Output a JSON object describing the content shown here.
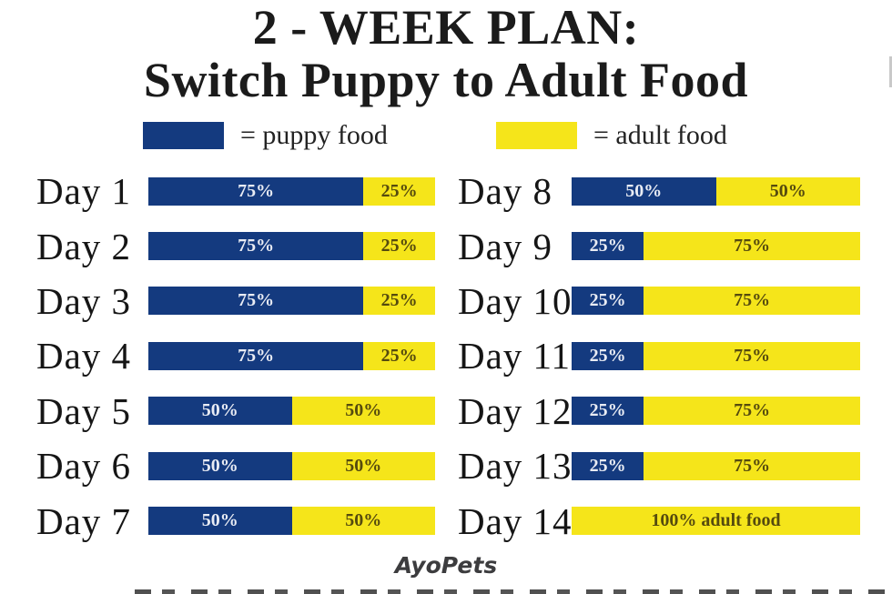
{
  "title": {
    "line1": "2 - WEEK PLAN:",
    "line2": "Switch Puppy to Adult Food"
  },
  "legend": {
    "puppy_label": "= puppy food",
    "adult_label": "= adult food"
  },
  "colors": {
    "puppy_blue": "#143a7f",
    "adult_yellow": "#f5e51a"
  },
  "footer": {
    "brand": "AyoPets"
  },
  "chart_data": {
    "type": "bar",
    "subtype": "horizontal_stacked_percent",
    "title": "2 - WEEK PLAN: Switch Puppy to Adult Food",
    "legend_entries": [
      "= puppy food",
      "= adult food"
    ],
    "series": [
      {
        "name": "puppy food",
        "color": "#143a7f"
      },
      {
        "name": "adult food",
        "color": "#f5e51a"
      }
    ],
    "layout": {
      "columns": 2,
      "left_column": [
        "Day 1",
        "Day 2",
        "Day 3",
        "Day 4",
        "Day 5",
        "Day 6",
        "Day 7"
      ],
      "right_column": [
        "Day 8",
        "Day 9",
        "Day 10",
        "Day 11",
        "Day 12",
        "Day 13",
        "Day 14"
      ],
      "value_labels": "inside"
    },
    "rows": [
      {
        "day": "Day 1",
        "puppy_pct": 75,
        "adult_pct": 25,
        "puppy_label": "75%",
        "adult_label": "25%"
      },
      {
        "day": "Day 2",
        "puppy_pct": 75,
        "adult_pct": 25,
        "puppy_label": "75%",
        "adult_label": "25%"
      },
      {
        "day": "Day 3",
        "puppy_pct": 75,
        "adult_pct": 25,
        "puppy_label": "75%",
        "adult_label": "25%"
      },
      {
        "day": "Day 4",
        "puppy_pct": 75,
        "adult_pct": 25,
        "puppy_label": "75%",
        "adult_label": "25%"
      },
      {
        "day": "Day 5",
        "puppy_pct": 50,
        "adult_pct": 50,
        "puppy_label": "50%",
        "adult_label": "50%"
      },
      {
        "day": "Day 6",
        "puppy_pct": 50,
        "adult_pct": 50,
        "puppy_label": "50%",
        "adult_label": "50%"
      },
      {
        "day": "Day 7",
        "puppy_pct": 50,
        "adult_pct": 50,
        "puppy_label": "50%",
        "adult_label": "50%"
      },
      {
        "day": "Day 8",
        "puppy_pct": 50,
        "adult_pct": 50,
        "puppy_label": "50%",
        "adult_label": "50%"
      },
      {
        "day": "Day 9",
        "puppy_pct": 25,
        "adult_pct": 75,
        "puppy_label": "25%",
        "adult_label": "75%"
      },
      {
        "day": "Day 10",
        "puppy_pct": 25,
        "adult_pct": 75,
        "puppy_label": "25%",
        "adult_label": "75%"
      },
      {
        "day": "Day 11",
        "puppy_pct": 25,
        "adult_pct": 75,
        "puppy_label": "25%",
        "adult_label": "75%"
      },
      {
        "day": "Day 12",
        "puppy_pct": 25,
        "adult_pct": 75,
        "puppy_label": "25%",
        "adult_label": "75%"
      },
      {
        "day": "Day 13",
        "puppy_pct": 25,
        "adult_pct": 75,
        "puppy_label": "25%",
        "adult_label": "75%"
      },
      {
        "day": "Day 14",
        "puppy_pct": 0,
        "adult_pct": 100,
        "puppy_label": "",
        "adult_label": "100% adult food"
      }
    ]
  }
}
